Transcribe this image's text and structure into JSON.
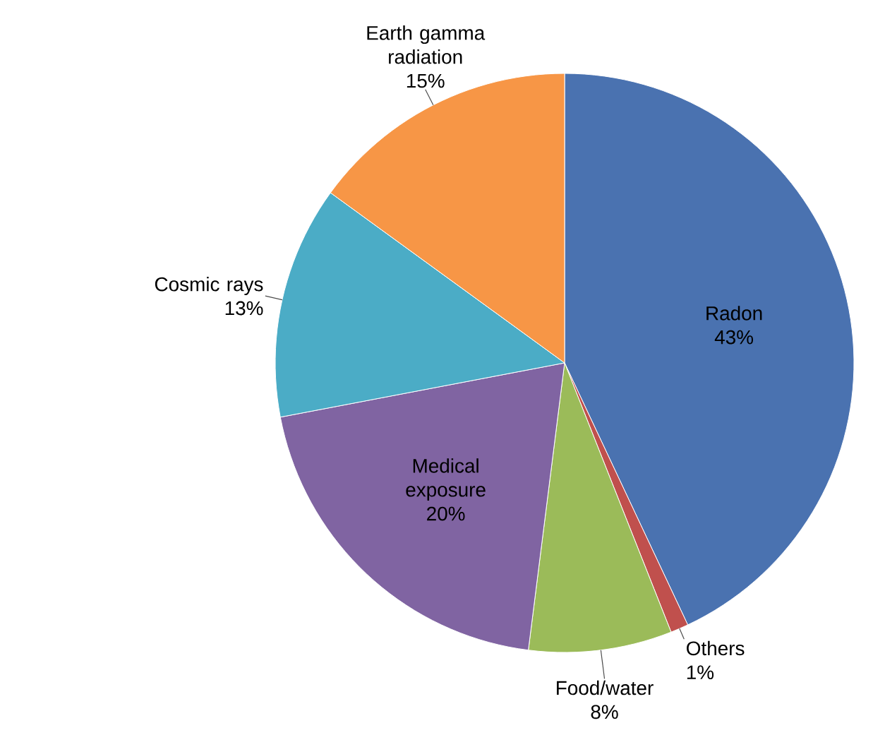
{
  "chart_data": {
    "type": "pie",
    "categories": [
      "Radon",
      "Others",
      "Food/water",
      "Medical exposure",
      "Cosmic rays",
      "Earth gamma radiation"
    ],
    "values": [
      43,
      1,
      8,
      20,
      13,
      15
    ],
    "value_labels": [
      "43%",
      "1%",
      "8%",
      "20%",
      "13%",
      "15%"
    ],
    "colors": [
      "#4a72b0",
      "#c0504d",
      "#9bbb59",
      "#8064a2",
      "#4bacc6",
      "#f79646"
    ]
  }
}
